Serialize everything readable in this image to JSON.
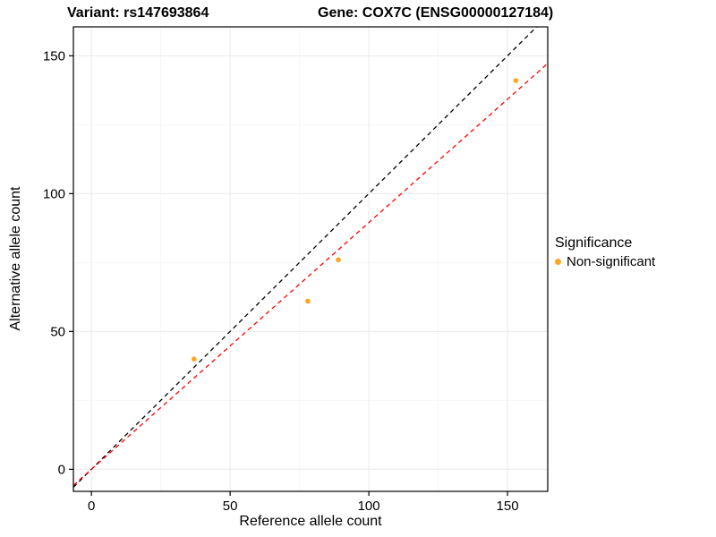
{
  "chart_data": {
    "type": "scatter",
    "title_left": "Variant: rs147693864",
    "title_right": "Gene: COX7C (ENSG00000127184)",
    "xlabel": "Reference allele count",
    "ylabel": "Alternative allele count",
    "xlim": [
      -6.5,
      164.5
    ],
    "ylim": [
      -8,
      160.5
    ],
    "xticks": [
      0,
      50,
      100,
      150
    ],
    "yticks": [
      0,
      50,
      100,
      150
    ],
    "grid": true,
    "background": "#FFFFFF",
    "panel_border_color": "#000000",
    "grid_major_color": "#EBEBEB",
    "grid_minor_color": "#F5F5F5",
    "point_color": "#FFA51E",
    "point_radius": 2.8,
    "points": [
      {
        "x": 37,
        "y": 40,
        "significance": "Non-significant"
      },
      {
        "x": 78,
        "y": 61,
        "significance": "Non-significant"
      },
      {
        "x": 89,
        "y": 76,
        "significance": "Non-significant"
      },
      {
        "x": 153,
        "y": 141,
        "significance": "Non-significant"
      }
    ],
    "lines": [
      {
        "name": "identity-line",
        "slope": 1,
        "intercept": 0,
        "color": "#000000",
        "dashed": true
      },
      {
        "name": "regression-line",
        "slope": 0.895,
        "intercept": 0,
        "color": "#FF0000",
        "dashed": true
      }
    ],
    "legend": {
      "title": "Significance",
      "position": "right",
      "entries": [
        {
          "label": "Non-significant",
          "color": "#FFA51E"
        }
      ]
    }
  }
}
